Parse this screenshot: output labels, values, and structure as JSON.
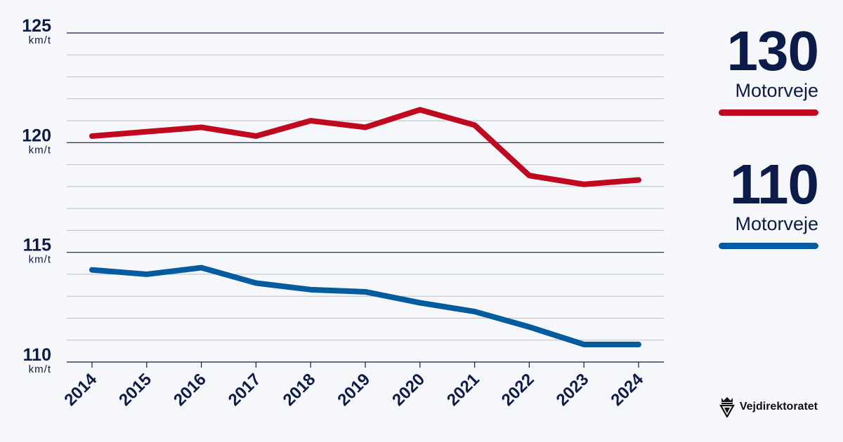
{
  "chart_data": {
    "type": "line",
    "x": [
      "2014",
      "2015",
      "2016",
      "2017",
      "2018",
      "2019",
      "2020",
      "2021",
      "2022",
      "2023",
      "2024"
    ],
    "ylim": [
      110,
      125
    ],
    "yticks": [
      {
        "value": 125,
        "label": "125",
        "unit": "km/t"
      },
      {
        "value": 120,
        "label": "120",
        "unit": "km/t"
      },
      {
        "value": 115,
        "label": "115",
        "unit": "km/t"
      },
      {
        "value": 110,
        "label": "110",
        "unit": "km/t"
      }
    ],
    "grid": true,
    "series": [
      {
        "name": "130 Motorveje",
        "color": "#c0081f",
        "values": [
          120.3,
          120.5,
          120.7,
          120.3,
          121.0,
          120.7,
          121.5,
          120.8,
          118.5,
          118.1,
          118.3
        ]
      },
      {
        "name": "110 Motorveje",
        "color": "#005c9e",
        "values": [
          114.2,
          114.0,
          114.3,
          113.6,
          113.3,
          113.2,
          112.7,
          112.3,
          111.6,
          110.8,
          110.8
        ]
      }
    ]
  },
  "legend": [
    {
      "big": "130",
      "sub": "Motorveje",
      "color": "#c0081f"
    },
    {
      "big": "110",
      "sub": "Motorveje",
      "color": "#005c9e"
    }
  ],
  "brand": {
    "name": "Vejdirektoratet",
    "icon": "crown-shield-icon"
  }
}
